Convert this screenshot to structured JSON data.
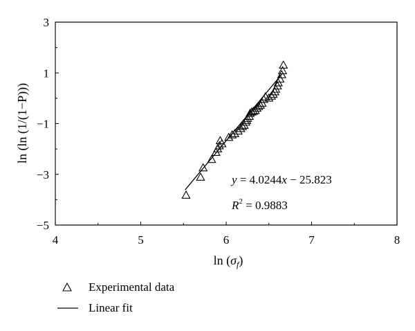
{
  "chart_data": {
    "type": "scatter",
    "xlabel_prefix": "ln (",
    "xlabel_symbol": "σ",
    "xlabel_subscript": "f",
    "xlabel_suffix": ")",
    "ylabel": "ln (ln (1/(1−P)))",
    "xlim": [
      4,
      8
    ],
    "ylim": [
      -5,
      3
    ],
    "xticks": [
      4,
      5,
      6,
      7,
      8
    ],
    "yticks": [
      3,
      1,
      -1,
      -3,
      -5
    ],
    "xtick_labels": [
      "4",
      "5",
      "6",
      "7",
      "8"
    ],
    "ytick_labels": [
      "3",
      "1",
      "−1",
      "−3",
      "−5"
    ],
    "grid": false,
    "legend_position": "below",
    "series": [
      {
        "name": "Experimental data",
        "marker": "triangle-open",
        "color": "#000000",
        "points": [
          [
            5.53,
            -3.83
          ],
          [
            5.7,
            -3.12
          ],
          [
            5.73,
            -2.75
          ],
          [
            5.83,
            -2.42
          ],
          [
            5.88,
            -2.14
          ],
          [
            5.9,
            -2.0
          ],
          [
            5.92,
            -1.88
          ],
          [
            5.93,
            -1.68
          ],
          [
            5.95,
            -1.8
          ],
          [
            6.03,
            -1.55
          ],
          [
            6.07,
            -1.45
          ],
          [
            6.1,
            -1.4
          ],
          [
            6.14,
            -1.3
          ],
          [
            6.17,
            -1.2
          ],
          [
            6.19,
            -1.12
          ],
          [
            6.21,
            -1.07
          ],
          [
            6.23,
            -0.95
          ],
          [
            6.24,
            -0.88
          ],
          [
            6.25,
            -0.8
          ],
          [
            6.27,
            -0.72
          ],
          [
            6.28,
            -0.6
          ],
          [
            6.3,
            -0.55
          ],
          [
            6.32,
            -0.52
          ],
          [
            6.34,
            -0.49
          ],
          [
            6.36,
            -0.4
          ],
          [
            6.38,
            -0.33
          ],
          [
            6.4,
            -0.28
          ],
          [
            6.42,
            -0.2
          ],
          [
            6.44,
            -0.05
          ],
          [
            6.46,
            0.05
          ],
          [
            6.5,
            0.0
          ],
          [
            6.53,
            0.08
          ],
          [
            6.55,
            0.15
          ],
          [
            6.57,
            0.25
          ],
          [
            6.58,
            0.35
          ],
          [
            6.6,
            0.48
          ],
          [
            6.61,
            0.6
          ],
          [
            6.63,
            0.75
          ],
          [
            6.65,
            0.92
          ],
          [
            6.66,
            1.08
          ],
          [
            6.67,
            1.3
          ]
        ]
      },
      {
        "name": "Linear fit",
        "kind": "line",
        "color": "#000000",
        "slope": 4.0244,
        "intercept": -25.823,
        "x_range": [
          5.52,
          6.66
        ]
      }
    ],
    "annotations": {
      "equation": {
        "y_var": "y",
        "equals_part1": " = 4.0244",
        "x_var": "x",
        "equals_part2": " − 25.823"
      },
      "r2": {
        "r_var": "R",
        "exponent": "2",
        "value_text": " = 0.9883"
      }
    }
  }
}
